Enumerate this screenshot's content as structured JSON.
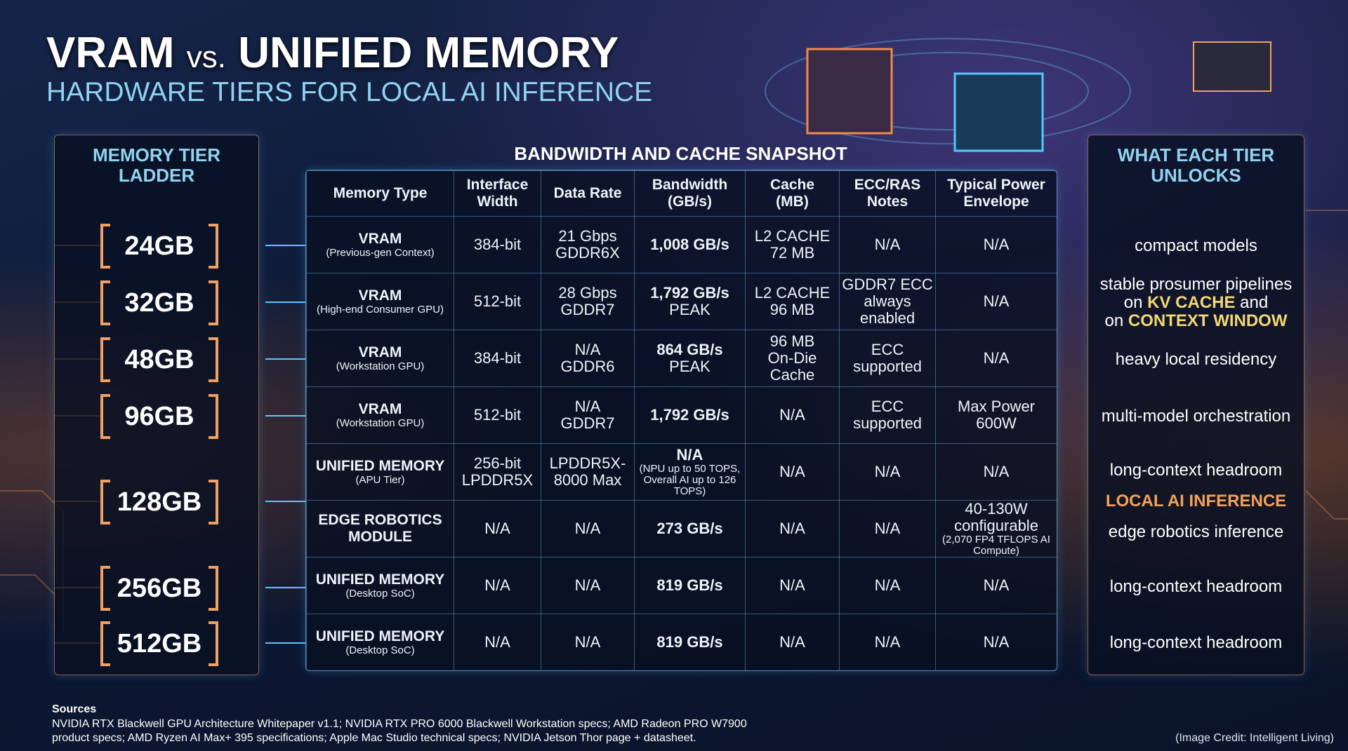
{
  "header": {
    "title_a": "VRAM",
    "title_vs": "vs.",
    "title_b": "UNIFIED MEMORY",
    "subtitle": "HARDWARE TIERS FOR LOCAL AI INFERENCE"
  },
  "ladder": {
    "title": "MEMORY TIER LADDER",
    "tiers": [
      "24GB",
      "32GB",
      "48GB",
      "96GB",
      "128GB",
      "256GB",
      "512GB"
    ]
  },
  "table": {
    "title": "BANDWIDTH AND CACHE SNAPSHOT",
    "headers": [
      [
        "Memory Type"
      ],
      [
        "Interface",
        "Width"
      ],
      [
        "Data Rate"
      ],
      [
        "Bandwidth",
        "(GB/s)"
      ],
      [
        "Cache",
        "(MB)"
      ],
      [
        "ECC/RAS",
        "Notes"
      ],
      [
        "Typical Power",
        "Envelope"
      ]
    ],
    "rows": [
      [
        [
          "VRAM",
          "(Previous-gen Context)"
        ],
        [
          "384-bit"
        ],
        [
          "21 Gbps",
          "GDDR6X"
        ],
        [
          "1,008 GB/s"
        ],
        [
          "L2 CACHE",
          "72 MB"
        ],
        [
          "N/A"
        ],
        [
          "N/A"
        ]
      ],
      [
        [
          "VRAM",
          "(High-end Consumer GPU)"
        ],
        [
          "512-bit"
        ],
        [
          "28 Gbps",
          "GDDR7"
        ],
        [
          "1,792 GB/s",
          "PEAK"
        ],
        [
          "L2 CACHE",
          "96 MB"
        ],
        [
          "GDDR7 ECC",
          "always enabled"
        ],
        [
          "N/A"
        ]
      ],
      [
        [
          "VRAM",
          "(Workstation GPU)"
        ],
        [
          "384-bit"
        ],
        [
          "N/A",
          "GDDR6"
        ],
        [
          "864 GB/s",
          "PEAK"
        ],
        [
          "96 MB",
          "On-Die Cache"
        ],
        [
          "ECC",
          "supported"
        ],
        [
          "N/A"
        ]
      ],
      [
        [
          "VRAM",
          "(Workstation GPU)"
        ],
        [
          "512-bit"
        ],
        [
          "N/A",
          "GDDR7"
        ],
        [
          "1,792 GB/s"
        ],
        [
          "N/A"
        ],
        [
          "ECC",
          "supported"
        ],
        [
          "Max Power",
          "600W"
        ]
      ],
      [
        [
          "UNIFIED MEMORY",
          "(APU Tier)"
        ],
        [
          "256-bit",
          "LPDDR5X"
        ],
        [
          "LPDDR5X-",
          "8000 Max"
        ],
        [
          "N/A",
          "(NPU up to 50 TOPS, Overall AI up to 126 TOPS)"
        ],
        [
          "N/A"
        ],
        [
          "N/A"
        ],
        [
          "N/A"
        ]
      ],
      [
        [
          "EDGE ROBOTICS",
          "MODULE"
        ],
        [
          "N/A"
        ],
        [
          "N/A"
        ],
        [
          "273 GB/s"
        ],
        [
          "N/A"
        ],
        [
          "N/A"
        ],
        [
          "40-130W",
          "configurable",
          "(2,070 FP4 TFLOPS AI Compute)"
        ]
      ],
      [
        [
          "UNIFIED MEMORY",
          "(Desktop SoC)"
        ],
        [
          "N/A"
        ],
        [
          "N/A"
        ],
        [
          "819 GB/s"
        ],
        [
          "N/A"
        ],
        [
          "N/A"
        ],
        [
          "N/A"
        ]
      ],
      [
        [
          "UNIFIED MEMORY",
          "(Desktop SoC)"
        ],
        [
          "N/A"
        ],
        [
          "N/A"
        ],
        [
          "819 GB/s"
        ],
        [
          "N/A"
        ],
        [
          "N/A"
        ],
        [
          "N/A"
        ]
      ]
    ]
  },
  "unlocks": {
    "title": "WHAT EACH TIER UNLOCKS",
    "items": [
      [
        [
          {
            "text": "compact models"
          }
        ]
      ],
      [
        [
          {
            "text": "stable prosumer pipelines"
          }
        ],
        [
          {
            "text": "on "
          },
          {
            "text": "KV CACHE",
            "color": "#f3d774"
          },
          {
            "text": " and"
          }
        ],
        [
          {
            "text": "on "
          },
          {
            "text": "CONTEXT WINDOW",
            "color": "#f3d774"
          }
        ]
      ],
      [
        [
          {
            "text": "heavy local residency"
          }
        ]
      ],
      [
        [
          {
            "text": "multi-model orchestration"
          }
        ]
      ],
      [
        [
          {
            "text": "long-context headroom"
          }
        ]
      ],
      [
        [
          {
            "text": "LOCAL AI INFERENCE",
            "color": "#f4a25a"
          }
        ]
      ],
      [
        [
          {
            "text": "edge robotics inference"
          }
        ]
      ],
      [
        [
          {
            "text": "long-context headroom"
          }
        ]
      ],
      [
        [
          {
            "text": "long-context headroom"
          }
        ]
      ]
    ]
  },
  "footer": {
    "sources_label": "Sources",
    "sources": "NVIDIA RTX Blackwell GPU Architecture Whitepaper v1.1; NVIDIA RTX PRO 6000 Blackwell Workstation specs; AMD Radeon PRO W7900 product specs; AMD Ryzen AI Max+ 395 specifications; Apple Mac Studio technical specs; NVIDIA Jetson Thor page + datasheet.",
    "credit": "(Image Credit: Intelligent Living)"
  }
}
